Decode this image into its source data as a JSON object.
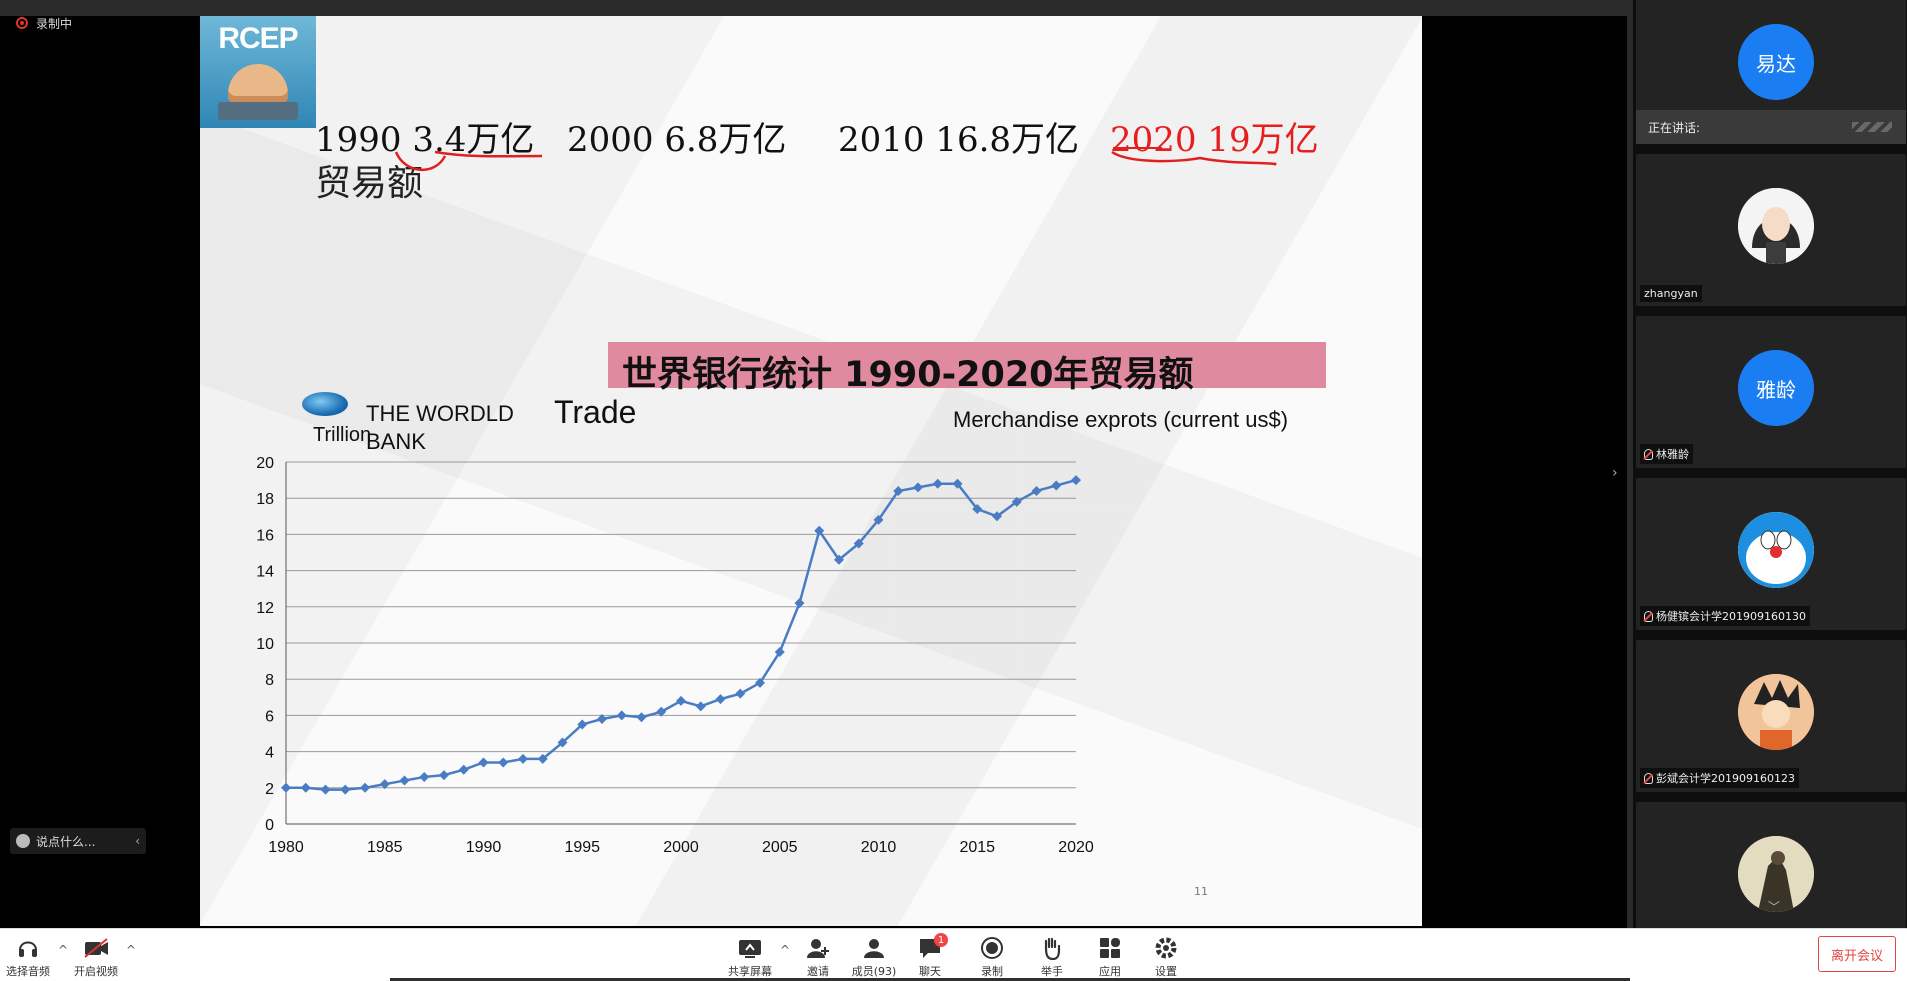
{
  "recording": {
    "label": "录制中"
  },
  "slide": {
    "logo_text": "RCEP",
    "years": [
      {
        "year": "1990",
        "value": "3.4万亿"
      },
      {
        "year": "2000",
        "value": "6.8万亿"
      },
      {
        "year": "2010",
        "value": "16.8万亿"
      },
      {
        "year": "2020",
        "value": "19万亿"
      }
    ],
    "trade_label": "贸易额",
    "banner_title": "世界银行统计  1990-2020年贸易额",
    "wb_text": "THE WORDLD BANK",
    "page_number": "11"
  },
  "chart_data": {
    "type": "line",
    "title": "Trade",
    "series_label": "Merchandise exprots (current us$)",
    "ylabel": "Trillion",
    "xlabel": "",
    "xlim": [
      1980,
      2020
    ],
    "ylim": [
      0,
      20
    ],
    "x_ticks": [
      1980,
      1985,
      1990,
      1995,
      2000,
      2005,
      2010,
      2015,
      2020
    ],
    "y_ticks": [
      0,
      2,
      4,
      6,
      8,
      10,
      12,
      14,
      16,
      18,
      20
    ],
    "grid": true,
    "line_color": "#4a7cc4",
    "series": [
      {
        "x": [
          1980,
          1981,
          1982,
          1983,
          1984,
          1985,
          1986,
          1987,
          1988,
          1989,
          1990,
          1991,
          1992,
          1993,
          1994,
          1995,
          1996,
          1997,
          1998,
          1999,
          2000,
          2001,
          2002,
          2003,
          2004,
          2005,
          2006,
          2007,
          2008,
          2009,
          2010,
          2011,
          2012,
          2013,
          2014,
          2015,
          2016,
          2017,
          2018,
          2019,
          2020
        ],
        "values": [
          2.0,
          2.0,
          1.9,
          1.9,
          2.0,
          2.2,
          2.4,
          2.6,
          2.7,
          3.0,
          3.4,
          3.4,
          3.6,
          3.6,
          4.5,
          5.5,
          5.8,
          6.0,
          5.9,
          6.2,
          6.8,
          6.5,
          6.9,
          7.2,
          7.8,
          9.5,
          12.2,
          16.2,
          14.6,
          15.5,
          16.8,
          18.4,
          18.6,
          18.8,
          18.8,
          17.4,
          17.0,
          17.8,
          18.4,
          18.7,
          19.0
        ]
      }
    ]
  },
  "participants": {
    "speaking_label": "正在讲话:",
    "tiles": [
      {
        "name": "",
        "avatar_text": "易达",
        "muted": false,
        "avatar": "blue"
      },
      {
        "name": "zhangyan",
        "avatar_text": "",
        "muted": false,
        "avatar": "girl"
      },
      {
        "name": "林雅龄",
        "avatar_text": "雅龄",
        "muted": true,
        "avatar": "blue"
      },
      {
        "name": "杨健镔会计学201909160130",
        "avatar_text": "",
        "muted": true,
        "avatar": "doraemon"
      },
      {
        "name": "彭斌会计学201909160123",
        "avatar_text": "",
        "muted": true,
        "avatar": "cartoon"
      },
      {
        "name": "",
        "avatar_text": "",
        "muted": false,
        "avatar": "photo"
      }
    ]
  },
  "chat": {
    "placeholder": "说点什么..."
  },
  "toolbar": {
    "audio": "选择音频",
    "video": "开启视频",
    "share": "共享屏幕",
    "invite": "邀请",
    "members": "成员(93)",
    "chat": "聊天",
    "chat_badge": "1",
    "record": "录制",
    "raise_hand": "举手",
    "apps": "应用",
    "settings": "设置",
    "leave": "离开会议"
  }
}
